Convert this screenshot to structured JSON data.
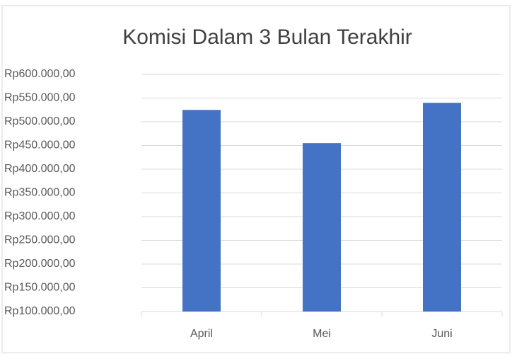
{
  "chart_data": {
    "type": "bar",
    "title": "Komisi Dalam 3 Bulan Terakhir",
    "categories": [
      "April",
      "Mei",
      "Juni"
    ],
    "values": [
      525000,
      455000,
      540000
    ],
    "color": "#4472c4",
    "ylim": [
      100000,
      600000
    ],
    "yticks": [
      {
        "value": 100000,
        "label": "Rp100.000,00"
      },
      {
        "value": 150000,
        "label": "Rp150.000,00"
      },
      {
        "value": 200000,
        "label": "Rp200.000,00"
      },
      {
        "value": 250000,
        "label": "Rp250.000,00"
      },
      {
        "value": 300000,
        "label": "Rp300.000,00"
      },
      {
        "value": 350000,
        "label": "Rp350.000,00"
      },
      {
        "value": 400000,
        "label": "Rp400.000,00"
      },
      {
        "value": 450000,
        "label": "Rp450.000,00"
      },
      {
        "value": 500000,
        "label": "Rp500.000,00"
      },
      {
        "value": 550000,
        "label": "Rp550.000,00"
      },
      {
        "value": 600000,
        "label": "Rp600.000,00"
      }
    ],
    "grid": true
  }
}
